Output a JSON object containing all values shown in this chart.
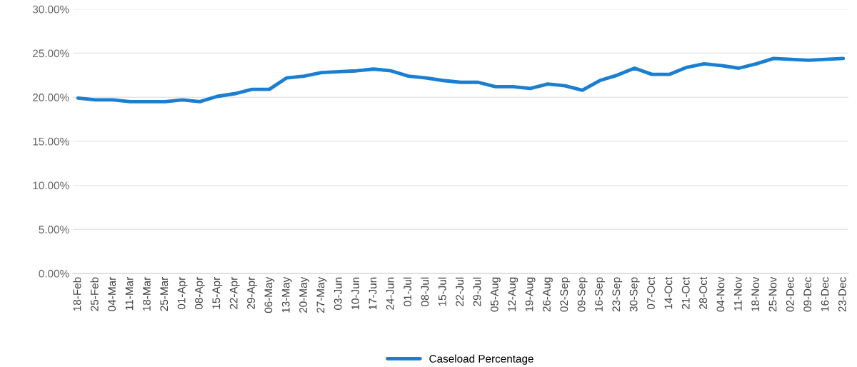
{
  "chart_data": {
    "type": "line",
    "categories": [
      "18-Feb",
      "25-Feb",
      "04-Mar",
      "11-Mar",
      "18-Mar",
      "25-Mar",
      "01-Apr",
      "08-Apr",
      "15-Apr",
      "22-Apr",
      "29-Apr",
      "06-May",
      "13-May",
      "20-May",
      "27-May",
      "03-Jun",
      "10-Jun",
      "17-Jun",
      "24-Jun",
      "01-Jul",
      "08-Jul",
      "15-Jul",
      "22-Jul",
      "29-Jul",
      "05-Aug",
      "12-Aug",
      "19-Aug",
      "26-Aug",
      "02-Sep",
      "09-Sep",
      "16-Sep",
      "23-Sep",
      "30-Sep",
      "07-Oct",
      "14-Oct",
      "21-Oct",
      "28-Oct",
      "04-Nov",
      "11-Nov",
      "18-Nov",
      "25-Nov",
      "02-Dec",
      "09-Dec",
      "16-Dec",
      "23-Dec"
    ],
    "series": [
      {
        "name": "Caseload Percentage",
        "color": "#1b7fd1",
        "values": [
          19.9,
          19.7,
          19.7,
          19.5,
          19.5,
          19.5,
          19.7,
          19.5,
          20.1,
          20.4,
          20.9,
          20.9,
          22.2,
          22.4,
          22.8,
          22.9,
          23.0,
          23.2,
          23.0,
          22.4,
          22.2,
          21.9,
          21.7,
          21.7,
          21.2,
          21.2,
          21.0,
          21.5,
          21.3,
          20.8,
          21.9,
          22.5,
          23.3,
          22.6,
          22.6,
          23.4,
          23.8,
          23.6,
          23.3,
          23.8,
          24.4,
          24.3,
          24.2,
          24.3,
          24.4
        ]
      }
    ],
    "ylim": [
      0,
      30
    ],
    "yticks": [
      {
        "value": 0,
        "label": "0.00%"
      },
      {
        "value": 5,
        "label": "5.00%"
      },
      {
        "value": 10,
        "label": "10.00%"
      },
      {
        "value": 15,
        "label": "15.00%"
      },
      {
        "value": 20,
        "label": "20.00%"
      },
      {
        "value": 25,
        "label": "25.00%"
      },
      {
        "value": 30,
        "label": "30.00%"
      }
    ],
    "grid": "y",
    "legend": "bottom",
    "marker": "none",
    "line_style": "solid"
  }
}
